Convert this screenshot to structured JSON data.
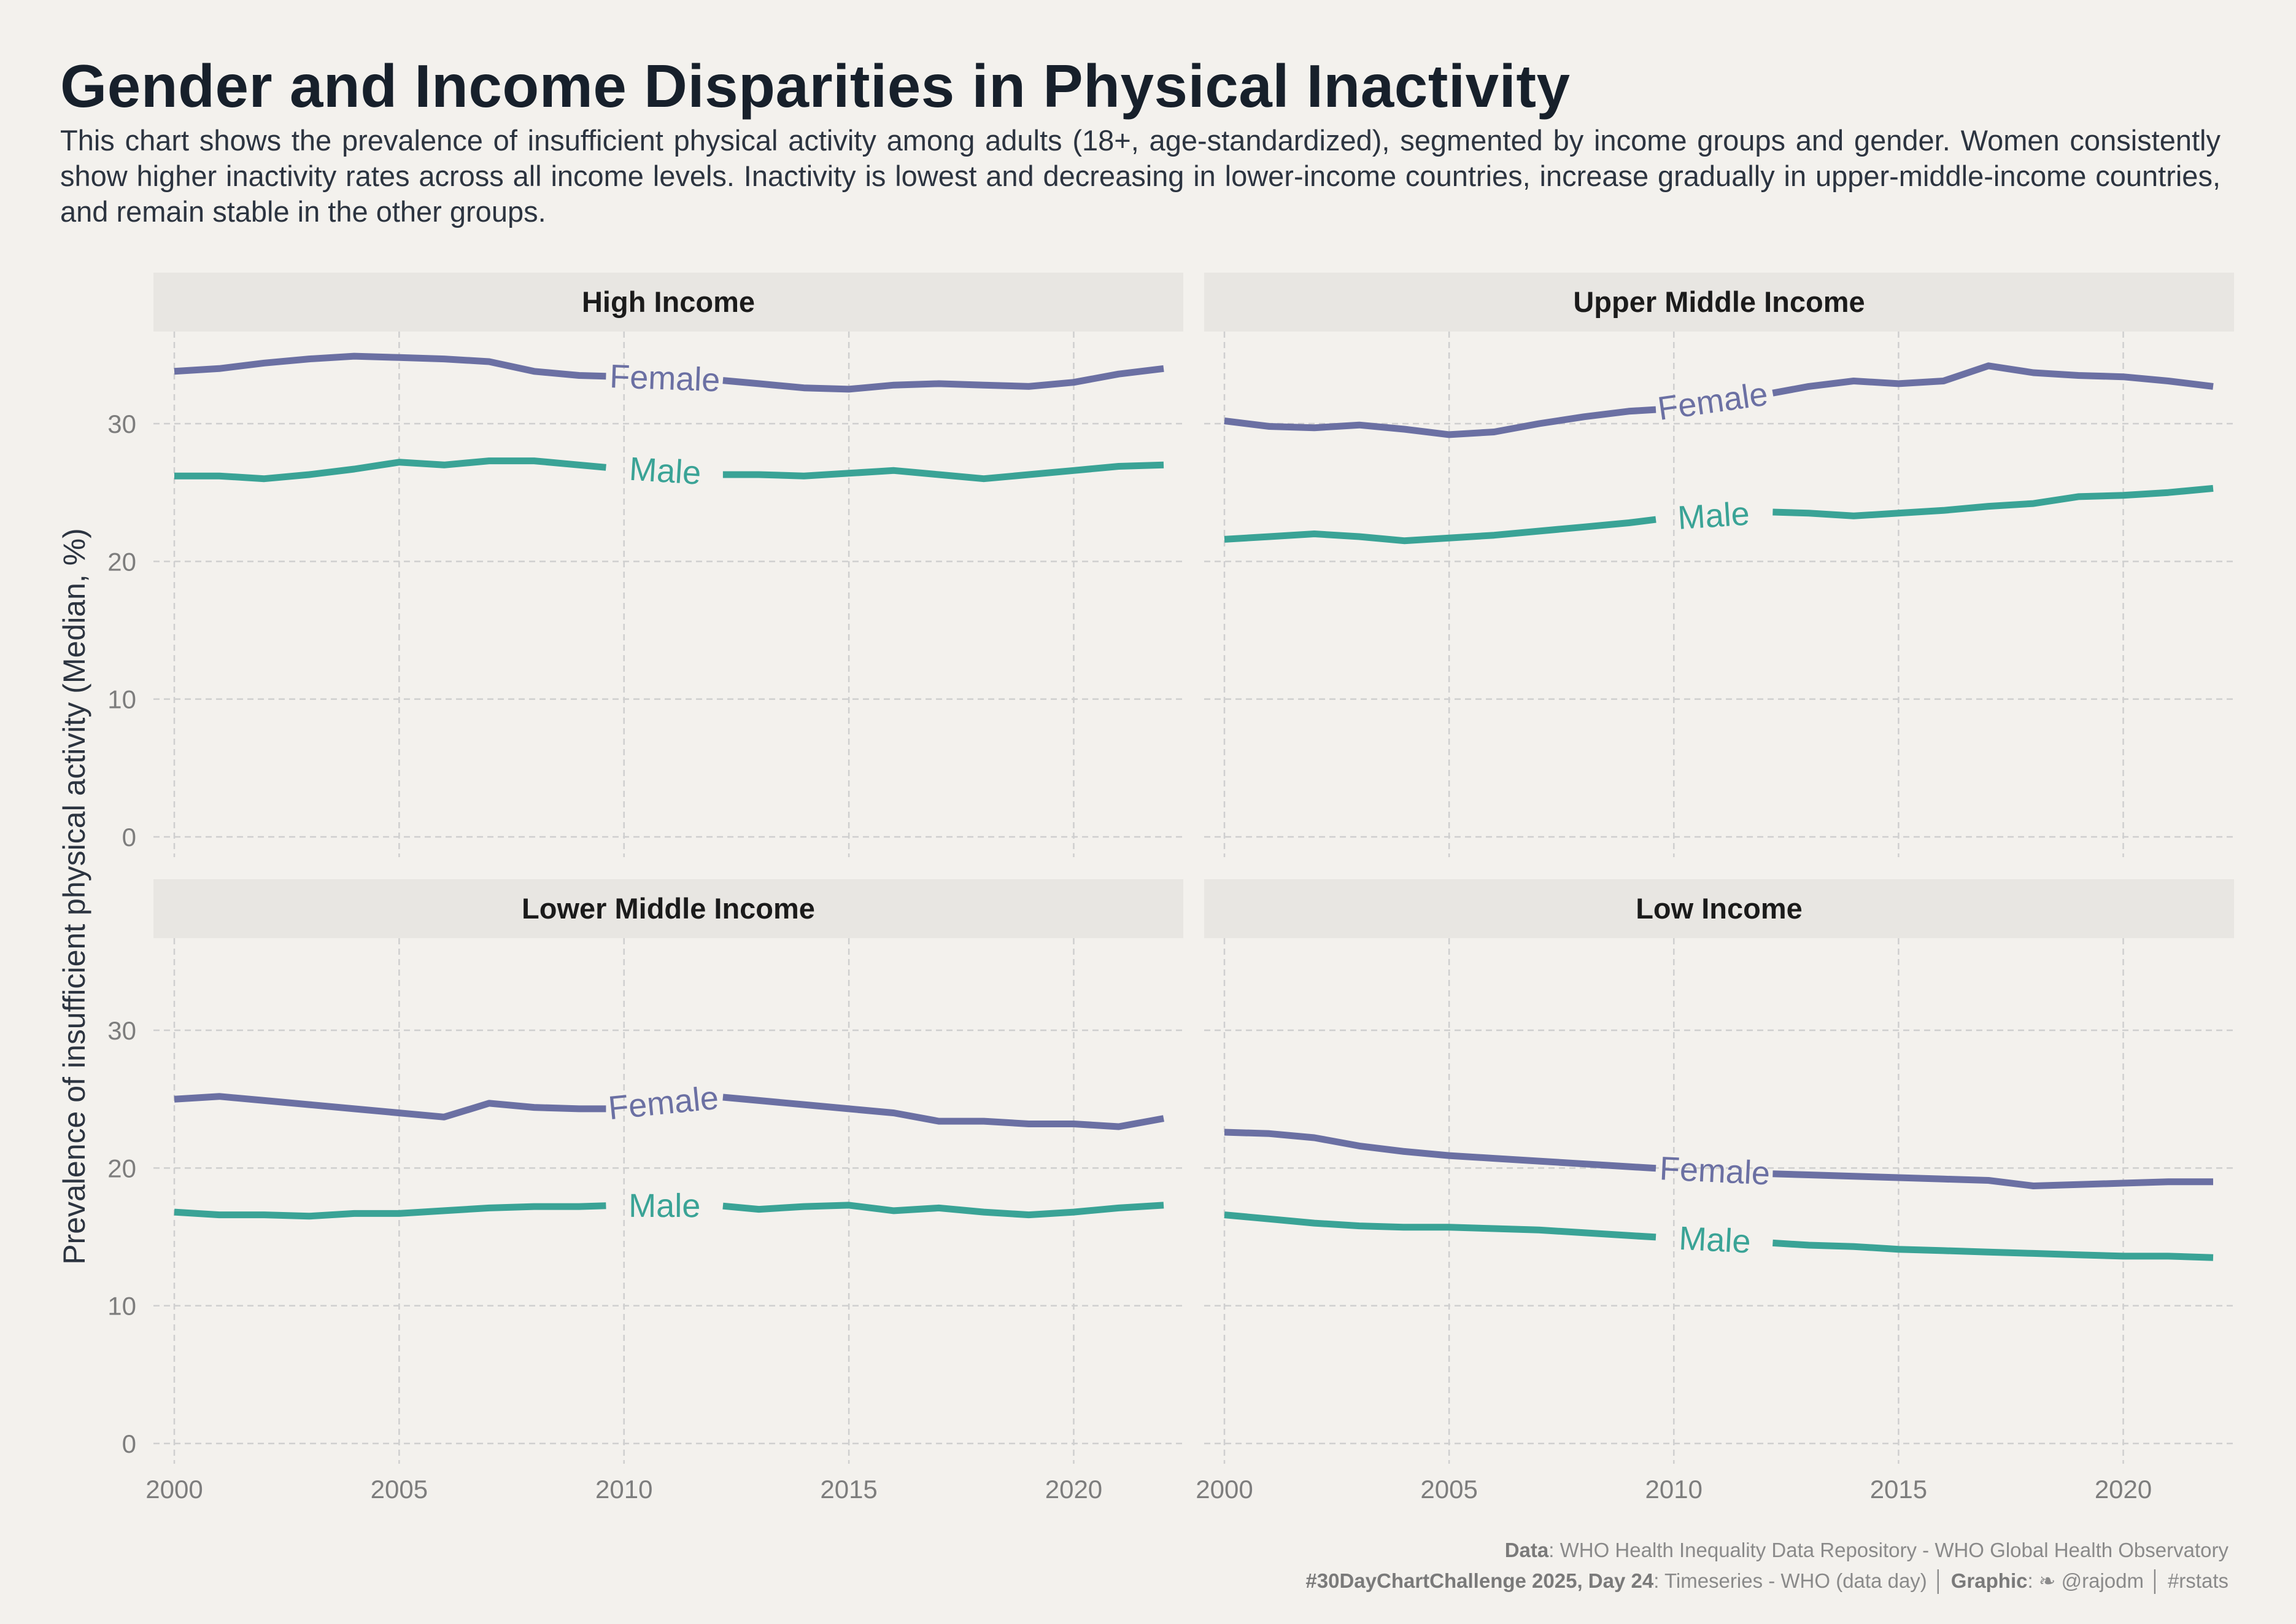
{
  "title": "Gender and Income Disparities in Physical Inactivity",
  "subtitle": "This chart shows the prevalence of insufficient physical activity among adults (18+, age-standardized), segmented by income groups and gender. Women consistently show higher inactivity rates across all income levels. Inactivity is lowest and decreasing in lower-income countries, increase gradually in upper-middle-income countries, and remain stable in the other groups.",
  "caption": {
    "data_label": "Data",
    "data_text": ": WHO Health Inequality Data Repository - WHO Global Health Observatory",
    "challenge_label": "#30DayChartChallenge 2025, Day 24",
    "challenge_text": ": Timeseries - WHO (data day) │ ",
    "graphic_label": "Graphic",
    "graphic_text": ": ❧ @rajodm │ #rstats"
  },
  "colors": {
    "background": "#f3f1ed",
    "strip": "#e8e6e2",
    "female": "#6b70a3",
    "male": "#3aa396",
    "grid": "#cfcfcf"
  },
  "chart_data": {
    "type": "line",
    "ylabel": "Prevalence of insufficient physical activity (Median, %)",
    "xlabel": "",
    "xlim": [
      2000,
      2022
    ],
    "ylim": [
      0,
      37
    ],
    "x_ticks": [
      2000,
      2005,
      2010,
      2015,
      2020
    ],
    "y_ticks": [
      0,
      10,
      20,
      30
    ],
    "grid": "dashed",
    "x": [
      2000,
      2001,
      2002,
      2003,
      2004,
      2005,
      2006,
      2007,
      2008,
      2009,
      2010,
      2011,
      2012,
      2013,
      2014,
      2015,
      2016,
      2017,
      2018,
      2019,
      2020,
      2021,
      2022
    ],
    "panels": [
      {
        "title": "High Income",
        "series": [
          {
            "name": "Female",
            "values": [
              33.8,
              34.0,
              34.4,
              34.7,
              34.9,
              34.8,
              34.7,
              34.5,
              33.8,
              33.5,
              33.4,
              33.3,
              33.2,
              32.9,
              32.6,
              32.5,
              32.8,
              32.9,
              32.8,
              32.7,
              33.0,
              33.6,
              34.0
            ]
          },
          {
            "name": "Male",
            "values": [
              26.2,
              26.2,
              26.0,
              26.3,
              26.7,
              27.2,
              27.0,
              27.3,
              27.3,
              27.0,
              26.7,
              26.5,
              26.3,
              26.3,
              26.2,
              26.4,
              26.6,
              26.3,
              26.0,
              26.3,
              26.6,
              26.9,
              27.0
            ]
          }
        ]
      },
      {
        "title": "Upper Middle Income",
        "series": [
          {
            "name": "Female",
            "values": [
              30.2,
              29.8,
              29.7,
              29.9,
              29.6,
              29.2,
              29.4,
              30.0,
              30.5,
              30.9,
              31.1,
              31.6,
              32.1,
              32.7,
              33.1,
              32.9,
              33.1,
              34.2,
              33.7,
              33.5,
              33.4,
              33.1,
              32.7
            ]
          },
          {
            "name": "Male",
            "values": [
              21.6,
              21.8,
              22.0,
              21.8,
              21.5,
              21.7,
              21.9,
              22.2,
              22.5,
              22.8,
              23.2,
              23.4,
              23.6,
              23.5,
              23.3,
              23.5,
              23.7,
              24.0,
              24.2,
              24.7,
              24.8,
              25.0,
              25.3
            ]
          }
        ]
      },
      {
        "title": "Lower Middle Income",
        "series": [
          {
            "name": "Female",
            "values": [
              25.0,
              25.2,
              24.9,
              24.6,
              24.3,
              24.0,
              23.7,
              24.7,
              24.4,
              24.3,
              24.3,
              24.9,
              25.2,
              24.9,
              24.6,
              24.3,
              24.0,
              23.4,
              23.4,
              23.2,
              23.2,
              23.0,
              23.6
            ]
          },
          {
            "name": "Male",
            "values": [
              16.8,
              16.6,
              16.6,
              16.5,
              16.7,
              16.7,
              16.9,
              17.1,
              17.2,
              17.2,
              17.3,
              17.4,
              17.3,
              17.0,
              17.2,
              17.3,
              16.9,
              17.1,
              16.8,
              16.6,
              16.8,
              17.1,
              17.3
            ]
          }
        ]
      },
      {
        "title": "Low Income",
        "series": [
          {
            "name": "Female",
            "values": [
              22.6,
              22.5,
              22.2,
              21.6,
              21.2,
              20.9,
              20.7,
              20.5,
              20.3,
              20.1,
              19.9,
              19.8,
              19.6,
              19.5,
              19.4,
              19.3,
              19.2,
              19.1,
              18.7,
              18.8,
              18.9,
              19.0,
              19.0
            ]
          },
          {
            "name": "Male",
            "values": [
              16.6,
              16.3,
              16.0,
              15.8,
              15.7,
              15.7,
              15.6,
              15.5,
              15.3,
              15.1,
              14.9,
              14.8,
              14.6,
              14.4,
              14.3,
              14.1,
              14.0,
              13.9,
              13.8,
              13.7,
              13.6,
              13.6,
              13.5
            ]
          }
        ]
      }
    ]
  }
}
